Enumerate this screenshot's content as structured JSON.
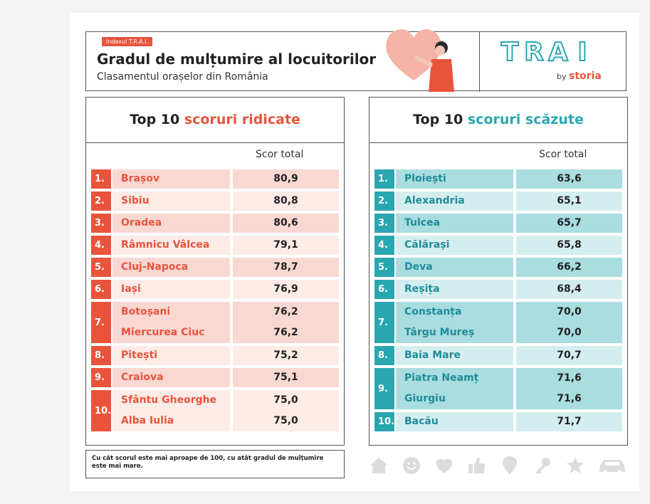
{
  "header": {
    "tag": "Indexul T.R.A.I.",
    "title": "Gradul de mulțumire al locuitorilor",
    "subtitle": "Clasamentul orașelor din România"
  },
  "logo": {
    "letters": [
      "T",
      "R",
      "A",
      "I"
    ],
    "by": "by",
    "brand": "storia"
  },
  "colors": {
    "accent_red": "#e8543c",
    "accent_teal": "#2aa6b1",
    "red_light": "#f9d8d2",
    "red_lighter": "#fcebe7",
    "teal_light": "#a9dde0",
    "teal_lighter": "#d4eef0"
  },
  "high": {
    "title_prefix": "Top 10 ",
    "title_accent": "scoruri ridicate",
    "score_header": "Scor total",
    "rows": [
      {
        "rank": "1.",
        "cities": [
          "Brașov"
        ],
        "scores": [
          "80,9"
        ]
      },
      {
        "rank": "2.",
        "cities": [
          "Sibiu"
        ],
        "scores": [
          "80,8"
        ]
      },
      {
        "rank": "3.",
        "cities": [
          "Oradea"
        ],
        "scores": [
          "80,6"
        ]
      },
      {
        "rank": "4.",
        "cities": [
          "Râmnicu Vâlcea"
        ],
        "scores": [
          "79,1"
        ]
      },
      {
        "rank": "5.",
        "cities": [
          "Cluj-Napoca"
        ],
        "scores": [
          "78,7"
        ]
      },
      {
        "rank": "6.",
        "cities": [
          "Iași"
        ],
        "scores": [
          "76,9"
        ]
      },
      {
        "rank": "7.",
        "cities": [
          "Botoșani",
          "Miercurea Ciuc"
        ],
        "scores": [
          "76,2",
          "76,2"
        ]
      },
      {
        "rank": "8.",
        "cities": [
          "Pitești"
        ],
        "scores": [
          "75,2"
        ]
      },
      {
        "rank": "9.",
        "cities": [
          "Craiova"
        ],
        "scores": [
          "75,1"
        ]
      },
      {
        "rank": "10.",
        "cities": [
          "Sfântu Gheorghe",
          "Alba Iulia"
        ],
        "scores": [
          "75,0",
          "75,0"
        ]
      }
    ]
  },
  "low": {
    "title_prefix": "Top 10 ",
    "title_accent": "scoruri scăzute",
    "score_header": "Scor total",
    "rows": [
      {
        "rank": "1.",
        "cities": [
          "Ploiești"
        ],
        "scores": [
          "63,6"
        ]
      },
      {
        "rank": "2.",
        "cities": [
          "Alexandria"
        ],
        "scores": [
          "65,1"
        ]
      },
      {
        "rank": "3.",
        "cities": [
          "Tulcea"
        ],
        "scores": [
          "65,7"
        ]
      },
      {
        "rank": "4.",
        "cities": [
          "Călărași"
        ],
        "scores": [
          "65,8"
        ]
      },
      {
        "rank": "5.",
        "cities": [
          "Deva"
        ],
        "scores": [
          "66,2"
        ]
      },
      {
        "rank": "6.",
        "cities": [
          "Reșița"
        ],
        "scores": [
          "68,4"
        ]
      },
      {
        "rank": "7.",
        "cities": [
          "Constanța",
          "Târgu Mureș"
        ],
        "scores": [
          "70,0",
          "70,0"
        ]
      },
      {
        "rank": "8.",
        "cities": [
          "Baia Mare"
        ],
        "scores": [
          "70,7"
        ]
      },
      {
        "rank": "9.",
        "cities": [
          "Piatra Neamț",
          "Giurgiu"
        ],
        "scores": [
          "71,6",
          "71,6"
        ]
      },
      {
        "rank": "10.",
        "cities": [
          "Bacău"
        ],
        "scores": [
          "71,7"
        ]
      }
    ]
  },
  "note": "Cu cât scorul este mai aproape de 100, cu atât gradul de mulțumire este mai mare.",
  "footer_icons": [
    "home-icon",
    "smiley-icon",
    "heart-icon",
    "thumbs-up-icon",
    "location-pin-icon",
    "key-icon",
    "star-icon",
    "car-icon"
  ]
}
